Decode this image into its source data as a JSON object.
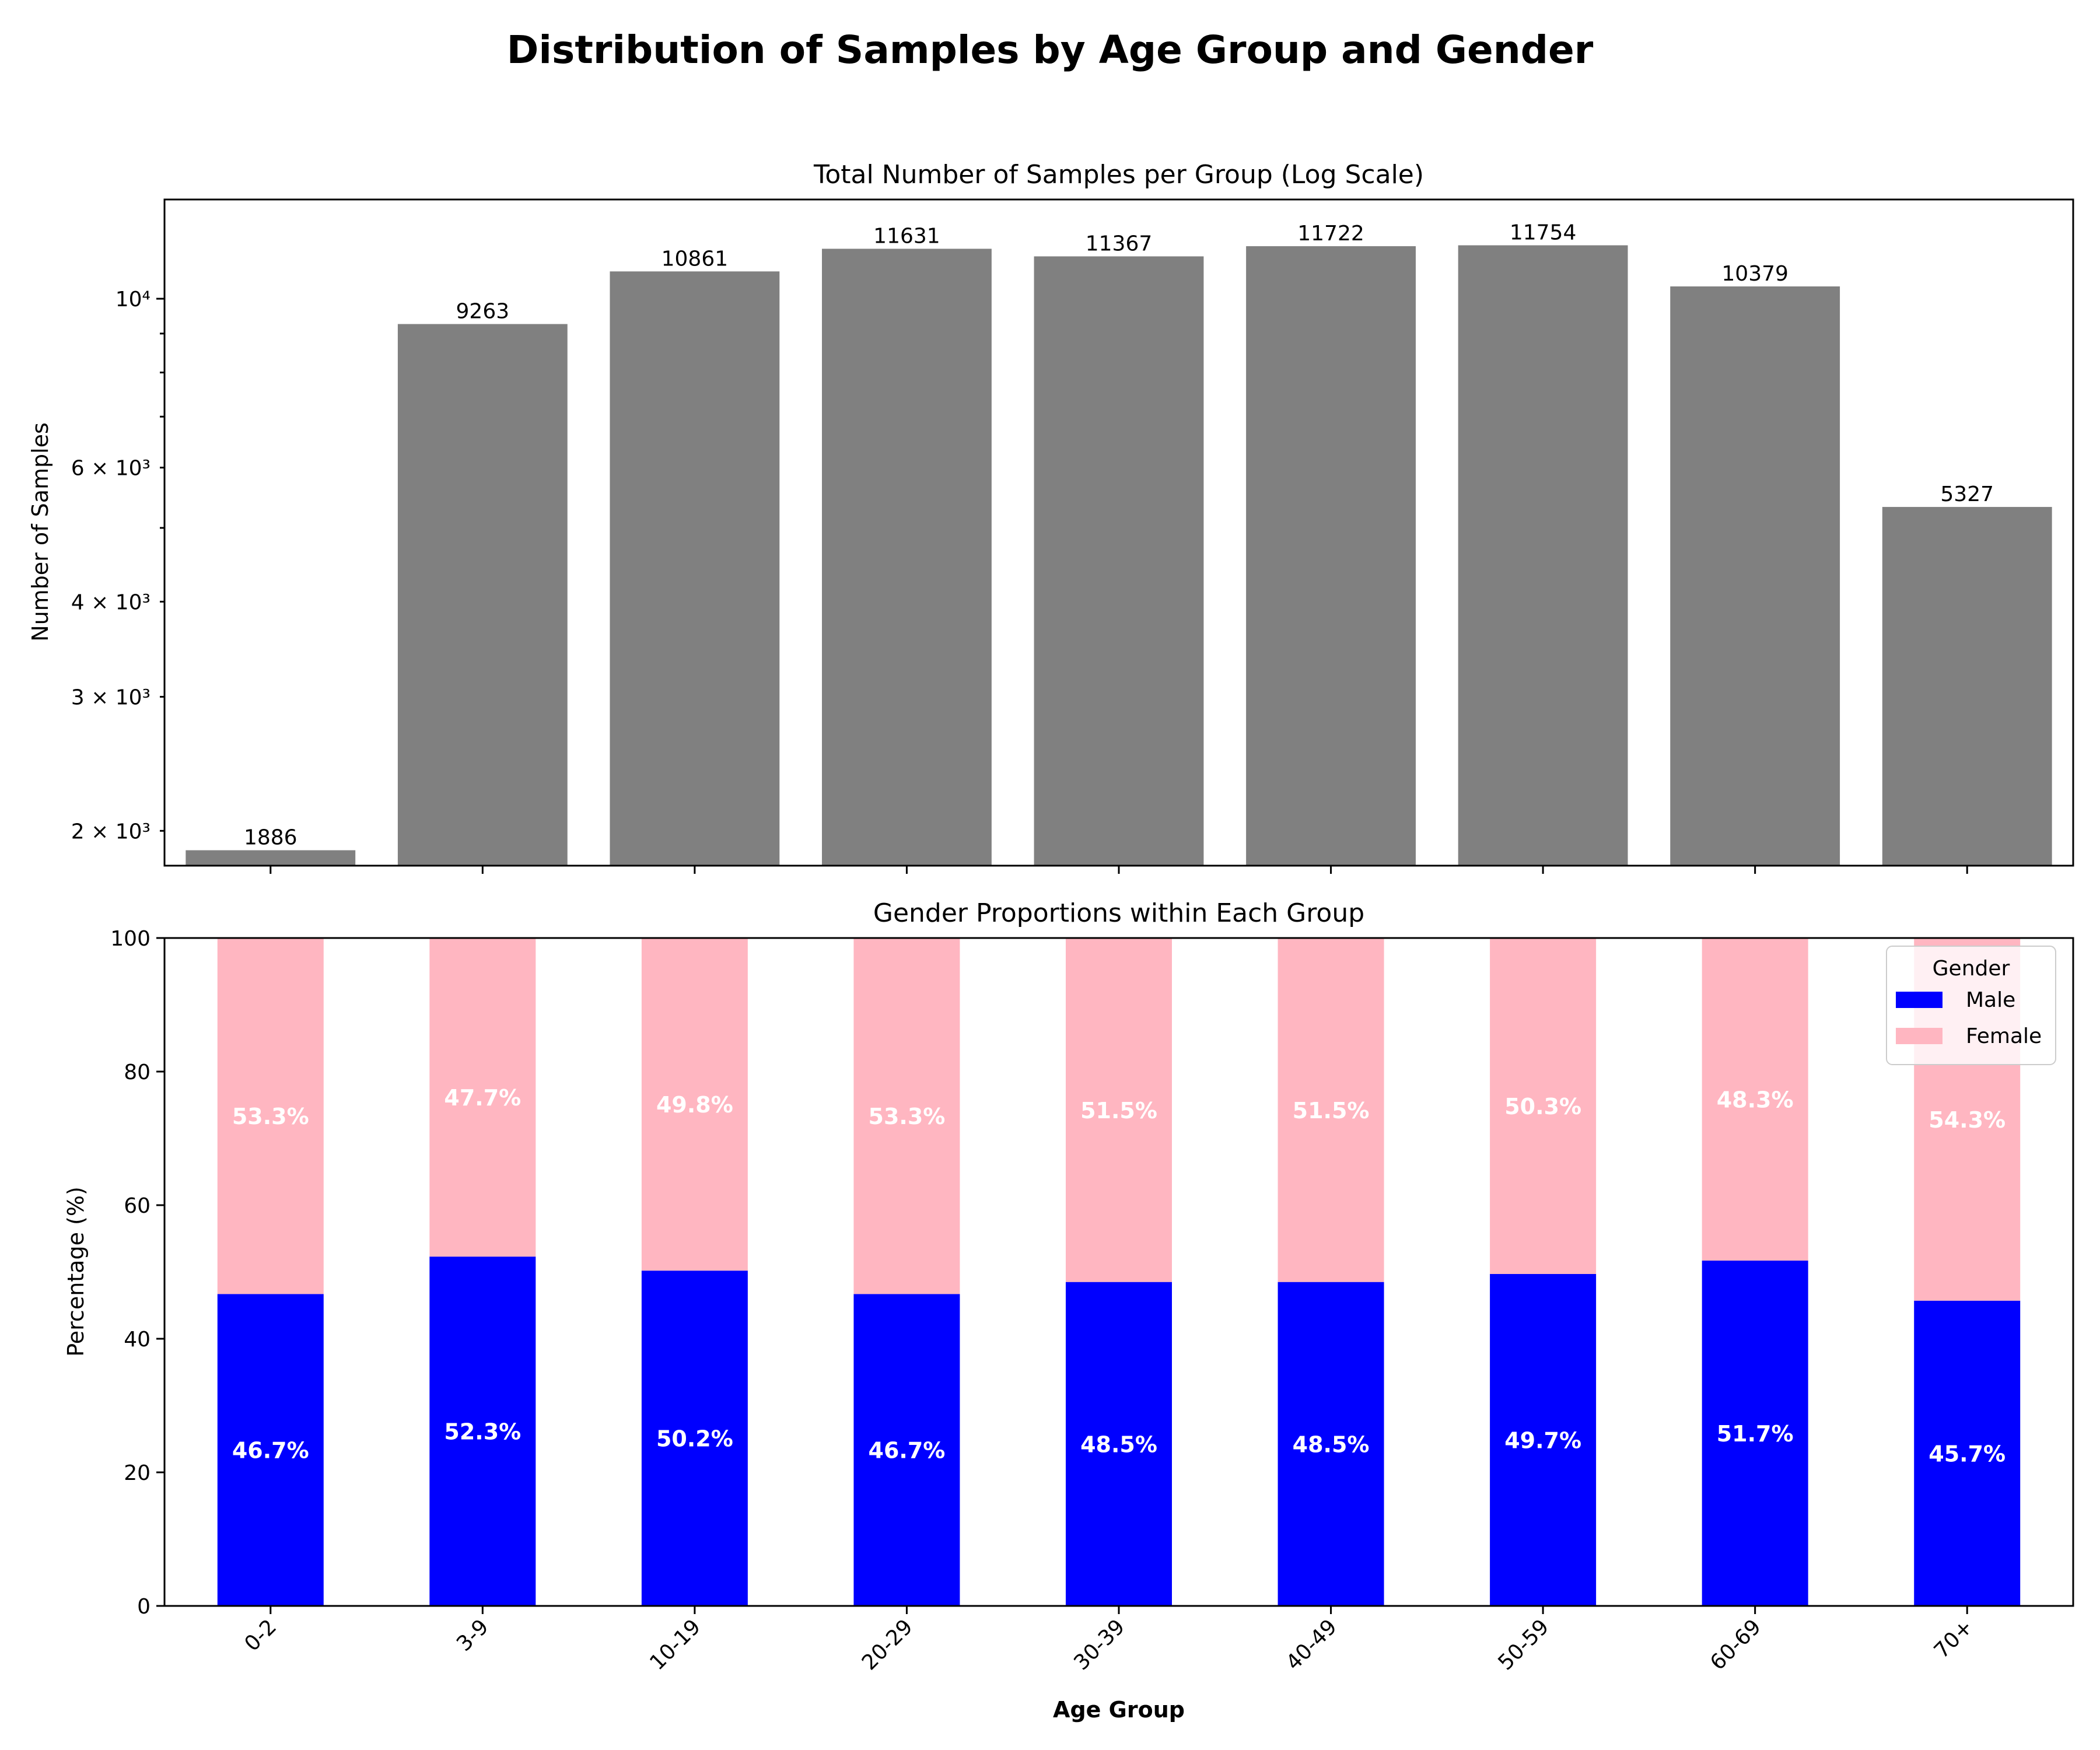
{
  "title": "Distribution of Samples by Age Group and Gender",
  "colors": {
    "total_bar": "#808080",
    "male": "#0000ff",
    "female": "#ffb6c1"
  },
  "chart_data": [
    {
      "type": "bar",
      "title": "Total Number of Samples per Group (Log Scale)",
      "ylabel": "Number of Samples",
      "xlabel": "",
      "yscale": "log",
      "ylim": [
        1800,
        13500
      ],
      "categories": [
        "0-2",
        "3-9",
        "10-19",
        "20-29",
        "30-39",
        "40-49",
        "50-59",
        "60-69",
        "70+"
      ],
      "values": [
        1886,
        9263,
        10861,
        11631,
        11367,
        11722,
        11754,
        10379,
        5327
      ],
      "data_labels": [
        "1886",
        "9263",
        "10861",
        "11631",
        "11367",
        "11722",
        "11754",
        "10379",
        "5327"
      ],
      "yticks": [
        {
          "value": 2000,
          "label": "2 × 10³"
        },
        {
          "value": 3000,
          "label": "3 × 10³"
        },
        {
          "value": 4000,
          "label": "4 × 10³"
        },
        {
          "value": 6000,
          "label": "6 × 10³"
        },
        {
          "value": 10000,
          "label": "10⁴"
        }
      ],
      "grid": false
    },
    {
      "type": "bar",
      "stacked": true,
      "title": "Gender Proportions within Each Group",
      "ylabel": "Percentage (%)",
      "xlabel": "Age Group",
      "ylim": [
        0,
        100
      ],
      "yticks": [
        0,
        20,
        40,
        60,
        80,
        100
      ],
      "categories": [
        "0-2",
        "3-9",
        "10-19",
        "20-29",
        "30-39",
        "40-49",
        "50-59",
        "60-69",
        "70+"
      ],
      "series": [
        {
          "name": "Male",
          "values": [
            46.7,
            52.3,
            50.2,
            46.7,
            48.5,
            48.5,
            49.7,
            51.7,
            45.7
          ],
          "labels": [
            "46.7%",
            "52.3%",
            "50.2%",
            "46.7%",
            "48.5%",
            "48.5%",
            "49.7%",
            "51.7%",
            "45.7%"
          ]
        },
        {
          "name": "Female",
          "values": [
            53.3,
            47.7,
            49.8,
            53.3,
            51.5,
            51.5,
            50.3,
            48.3,
            54.3
          ],
          "labels": [
            "53.3%",
            "47.7%",
            "49.8%",
            "53.3%",
            "51.5%",
            "51.5%",
            "50.3%",
            "48.3%",
            "54.3%"
          ]
        }
      ],
      "legend": {
        "title": "Gender",
        "position": "top-right"
      },
      "grid": false
    }
  ]
}
